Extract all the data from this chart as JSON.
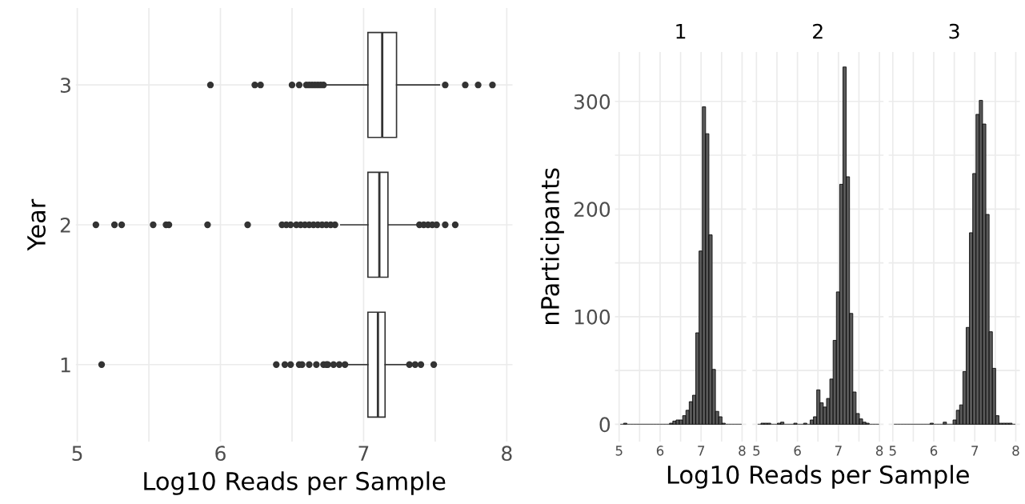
{
  "chart_data": [
    {
      "type": "box",
      "orientation": "horizontal",
      "categories": [
        "3",
        "2",
        "1"
      ],
      "xlabel": "Log10 Reads per Sample",
      "ylabel": "Year",
      "xlim": [
        4.99,
        8.04
      ],
      "xticks": [
        5,
        {
          "value": 5.5,
          "label": null
        },
        6,
        {
          "value": 6.5,
          "label": null
        },
        7,
        {
          "value": 7.5,
          "label": null
        },
        8
      ],
      "grid": true,
      "series": [
        {
          "color": "#333333",
          "boxes": [
            {
              "low": 6.74,
              "q1": 7.03,
              "median": 7.13,
              "q3": 7.23,
              "high": 7.53,
              "outliers": [
                5.93,
                6.24,
                6.28,
                6.5,
                6.55,
                6.6,
                6.62,
                6.64,
                6.66,
                6.68,
                6.7,
                6.72,
                7.57,
                7.71,
                7.8,
                7.9
              ]
            },
            {
              "low": 6.84,
              "q1": 7.03,
              "median": 7.11,
              "q3": 7.17,
              "high": 7.37,
              "outliers": [
                5.13,
                5.26,
                5.31,
                5.53,
                5.62,
                5.64,
                5.91,
                6.19,
                6.43,
                6.46,
                6.49,
                6.53,
                6.56,
                6.59,
                6.62,
                6.65,
                6.68,
                6.71,
                6.74,
                6.77,
                6.8,
                7.39,
                7.42,
                7.45,
                7.48,
                7.51,
                7.57,
                7.64
              ]
            },
            {
              "low": 6.88,
              "q1": 7.03,
              "median": 7.1,
              "q3": 7.15,
              "high": 7.31,
              "outliers": [
                5.17,
                6.39,
                6.45,
                6.49,
                6.55,
                6.57,
                6.62,
                6.67,
                6.72,
                6.74,
                6.75,
                6.79,
                6.83,
                6.87,
                7.32,
                7.36,
                7.4,
                7.49
              ]
            }
          ]
        }
      ]
    },
    {
      "type": "histogram",
      "title": "1",
      "ylabel": "nParticipants",
      "color": "#595959",
      "grid": true,
      "xlim": [
        4.9,
        8.1
      ],
      "ylim": [
        -16,
        346
      ],
      "xticks": [
        5,
        {
          "value": 5.5,
          "label": null
        },
        6,
        {
          "value": 6.5,
          "label": null
        },
        7,
        {
          "value": 7.5,
          "label": null
        },
        8
      ],
      "yticks": [
        0,
        {
          "value": 50,
          "label": null
        },
        100,
        {
          "value": 150,
          "label": null
        },
        200,
        {
          "value": 250,
          "label": null
        },
        300
      ],
      "bins": [
        5.03,
        5.11,
        5.19,
        5.27,
        5.35,
        5.43,
        5.51,
        5.59,
        5.67,
        5.75,
        5.83,
        5.91,
        5.99,
        6.07,
        6.15,
        6.23,
        6.31,
        6.39,
        6.47,
        6.55,
        6.63,
        6.71,
        6.79,
        6.87,
        6.95,
        7.03,
        7.11,
        7.19,
        7.27,
        7.35,
        7.43,
        7.51,
        7.59,
        7.67,
        7.75,
        7.83,
        7.91,
        7.99
      ],
      "values": [
        0,
        1,
        0,
        0,
        0,
        0,
        0,
        0,
        0,
        0,
        0,
        0,
        0,
        0,
        0,
        1,
        3,
        4,
        4,
        8,
        13,
        21,
        27,
        85,
        161,
        295,
        270,
        176,
        51,
        12,
        7,
        1,
        0,
        0,
        0,
        0,
        0
      ]
    },
    {
      "type": "histogram",
      "title": "2",
      "xlabel": "Log10 Reads per Sample",
      "tick_labels": "x",
      "color": "#595959",
      "grid": true,
      "xlim": [
        4.9,
        8.1
      ],
      "ylim": [
        -16,
        346
      ],
      "xticks": [
        5,
        {
          "value": 5.5,
          "label": null
        },
        6,
        {
          "value": 6.5,
          "label": null
        },
        7,
        {
          "value": 7.5,
          "label": null
        },
        8
      ],
      "yticks": [
        0,
        {
          "value": 50,
          "label": null
        },
        100,
        {
          "value": 150,
          "label": null
        },
        200,
        {
          "value": 250,
          "label": null
        },
        300
      ],
      "bins": [
        5.03,
        5.11,
        5.19,
        5.27,
        5.35,
        5.43,
        5.51,
        5.59,
        5.67,
        5.75,
        5.83,
        5.91,
        5.99,
        6.07,
        6.15,
        6.23,
        6.31,
        6.39,
        6.47,
        6.55,
        6.63,
        6.71,
        6.79,
        6.87,
        6.95,
        7.03,
        7.11,
        7.19,
        7.27,
        7.35,
        7.43,
        7.51,
        7.59,
        7.67,
        7.75,
        7.83,
        7.91,
        7.99
      ],
      "values": [
        0,
        1,
        1,
        1,
        0,
        0,
        1,
        2,
        0,
        0,
        0,
        1,
        0,
        0,
        1,
        0,
        4,
        7,
        32,
        20,
        16,
        24,
        42,
        78,
        123,
        223,
        332,
        230,
        103,
        30,
        10,
        5,
        2,
        1,
        0,
        0,
        0
      ]
    },
    {
      "type": "histogram",
      "title": "3",
      "tick_labels": "x",
      "color": "#595959",
      "grid": true,
      "xlim": [
        4.9,
        8.1
      ],
      "ylim": [
        -16,
        346
      ],
      "xticks": [
        5,
        {
          "value": 5.5,
          "label": null
        },
        6,
        {
          "value": 6.5,
          "label": null
        },
        7,
        {
          "value": 7.5,
          "label": null
        },
        8
      ],
      "yticks": [
        0,
        {
          "value": 50,
          "label": null
        },
        100,
        {
          "value": 150,
          "label": null
        },
        200,
        {
          "value": 250,
          "label": null
        },
        300
      ],
      "bins": [
        5.03,
        5.11,
        5.19,
        5.27,
        5.35,
        5.43,
        5.51,
        5.59,
        5.67,
        5.75,
        5.83,
        5.91,
        5.99,
        6.07,
        6.15,
        6.23,
        6.31,
        6.39,
        6.47,
        6.55,
        6.63,
        6.71,
        6.79,
        6.87,
        6.95,
        7.03,
        7.11,
        7.19,
        7.27,
        7.35,
        7.43,
        7.51,
        7.59,
        7.67,
        7.75,
        7.83,
        7.91,
        7.99
      ],
      "values": [
        0,
        0,
        0,
        0,
        0,
        0,
        0,
        0,
        0,
        0,
        0,
        1,
        0,
        0,
        0,
        2,
        0,
        0,
        4,
        13,
        18,
        49,
        90,
        178,
        233,
        288,
        301,
        279,
        195,
        86,
        52,
        8,
        1,
        1,
        1,
        1,
        0
      ]
    }
  ]
}
